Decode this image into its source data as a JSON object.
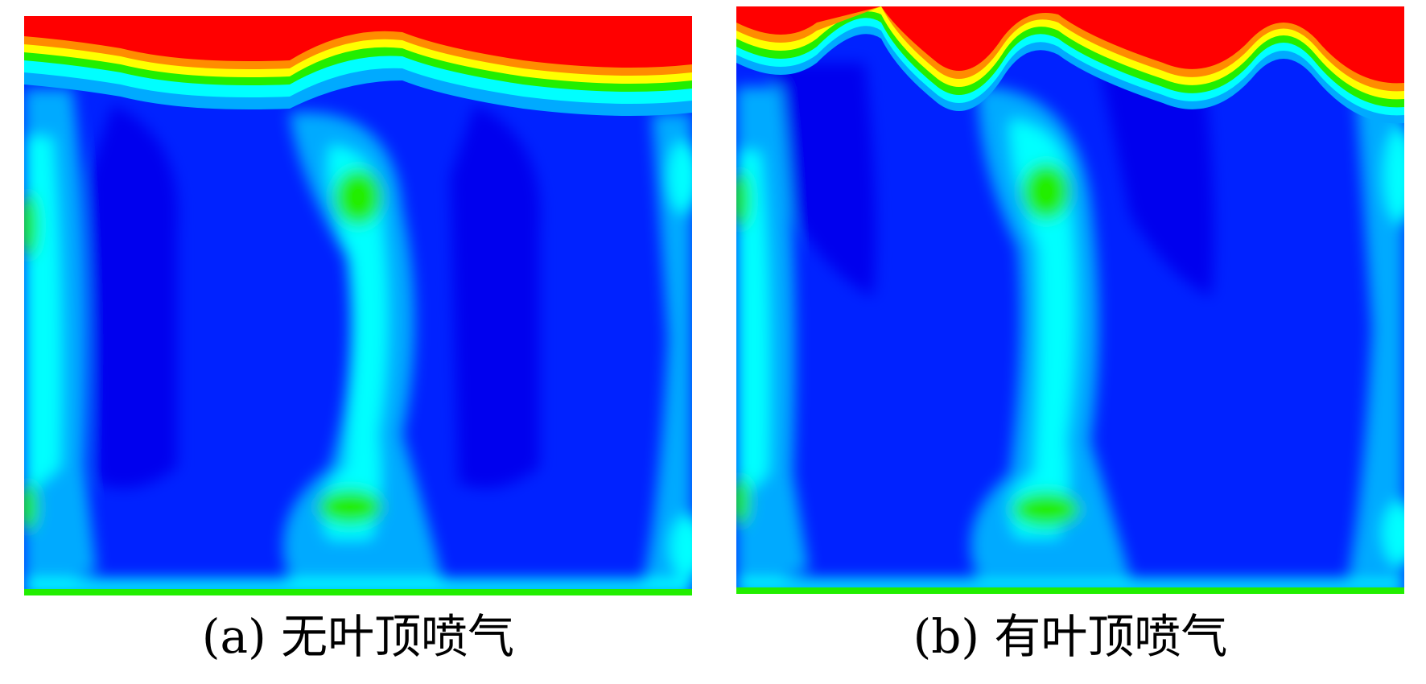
{
  "colors": {
    "red": "#ff0000",
    "orange": "#ff8c00",
    "yellow": "#ffff00",
    "green": "#22ee00",
    "cyan": "#00ffff",
    "light_blue": "#00aaff",
    "blue": "#0022ff",
    "dark_blue": "#0000ee"
  },
  "panels": [
    {
      "label": "(a) 无叶顶喷气"
    },
    {
      "label": "(b) 有叶顶喷气"
    }
  ]
}
